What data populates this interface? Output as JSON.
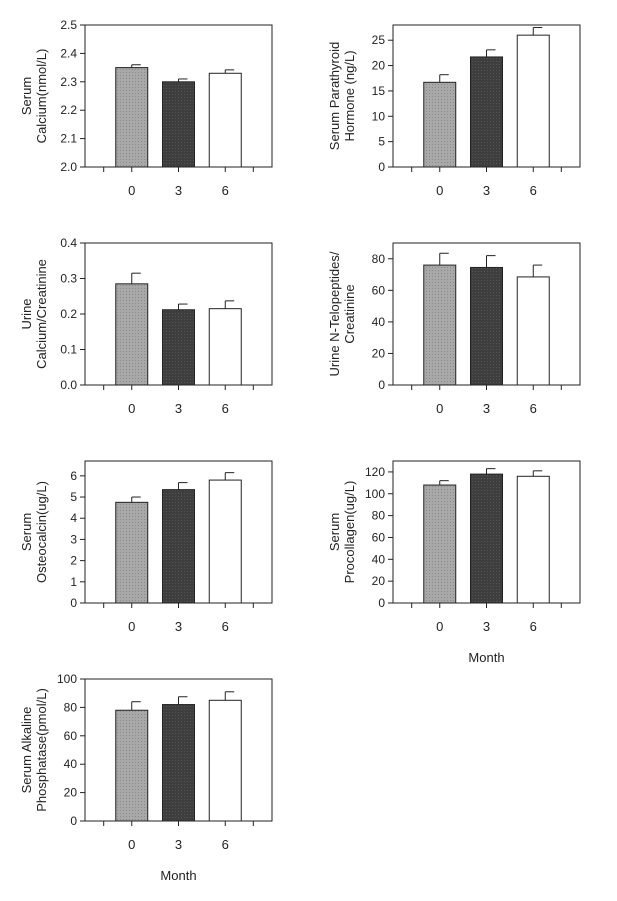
{
  "colors": {
    "month_0": "#9c9c9c",
    "month_3": "#3c3c3c",
    "month_6": "#ffffff",
    "axis": "#222222"
  },
  "chart_data": [
    {
      "id": "serum-calcium",
      "type": "bar",
      "ylabel": [
        "Serum",
        "Calcium(nmol/L)"
      ],
      "xlabel": "",
      "categories": [
        "0",
        "3",
        "6"
      ],
      "values": [
        2.35,
        2.3,
        2.33
      ],
      "errors": [
        0.01,
        0.01,
        0.012
      ],
      "ylim": [
        2.0,
        2.5
      ],
      "yticks": [
        2.0,
        2.1,
        2.2,
        2.3,
        2.4,
        2.5
      ],
      "ytick_labels": [
        "2.0",
        "2.1",
        "2.2",
        "2.3",
        "2.4",
        "2.5"
      ]
    },
    {
      "id": "serum-pth",
      "type": "bar",
      "ylabel": [
        "Serum Parathyroid",
        "Hormone (ng/L)"
      ],
      "xlabel": "",
      "categories": [
        "0",
        "3",
        "6"
      ],
      "values": [
        16.7,
        21.7,
        26.0
      ],
      "errors": [
        1.5,
        1.4,
        1.5
      ],
      "ylim": [
        0,
        28
      ],
      "yticks": [
        0,
        5,
        10,
        15,
        20,
        25
      ],
      "ytick_labels": [
        "0",
        "5",
        "10",
        "15",
        "20",
        "25"
      ]
    },
    {
      "id": "urine-calcium",
      "type": "bar",
      "ylabel": [
        "Urine",
        "Calcium/Creatinine"
      ],
      "xlabel": "",
      "categories": [
        "0",
        "3",
        "6"
      ],
      "values": [
        0.285,
        0.212,
        0.215
      ],
      "errors": [
        0.03,
        0.016,
        0.022
      ],
      "ylim": [
        0.0,
        0.4
      ],
      "yticks": [
        0.0,
        0.1,
        0.2,
        0.3,
        0.4
      ],
      "ytick_labels": [
        "0.0",
        "0.1",
        "0.2",
        "0.3",
        "0.4"
      ]
    },
    {
      "id": "urine-ntx",
      "type": "bar",
      "ylabel": [
        "Urine N-Telopeptides/",
        "Creatinine"
      ],
      "xlabel": "",
      "categories": [
        "0",
        "3",
        "6"
      ],
      "values": [
        76,
        74.5,
        68.5
      ],
      "errors": [
        7.5,
        7.5,
        7.5
      ],
      "ylim": [
        0,
        90
      ],
      "yticks": [
        0,
        20,
        40,
        60,
        80
      ],
      "ytick_labels": [
        "0",
        "20",
        "40",
        "60",
        "80"
      ]
    },
    {
      "id": "serum-osteocalcin",
      "type": "bar",
      "ylabel": [
        "Serum",
        "Osteocalcin(ug/L)"
      ],
      "xlabel": "",
      "categories": [
        "0",
        "3",
        "6"
      ],
      "values": [
        4.75,
        5.35,
        5.8
      ],
      "errors": [
        0.25,
        0.33,
        0.35
      ],
      "ylim": [
        0,
        6.7
      ],
      "yticks": [
        0,
        1,
        2,
        3,
        4,
        5,
        6
      ],
      "ytick_labels": [
        "0",
        "1",
        "2",
        "3",
        "4",
        "5",
        "6"
      ]
    },
    {
      "id": "serum-procollagen",
      "type": "bar",
      "ylabel": [
        "Serum",
        "Procollagen(ug/L)"
      ],
      "xlabel": "Month",
      "categories": [
        "0",
        "3",
        "6"
      ],
      "values": [
        108,
        118,
        116
      ],
      "errors": [
        4,
        5,
        5
      ],
      "ylim": [
        0,
        130
      ],
      "yticks": [
        0,
        20,
        40,
        60,
        80,
        100,
        120
      ],
      "ytick_labels": [
        "0",
        "20",
        "40",
        "60",
        "80",
        "100",
        "120"
      ]
    },
    {
      "id": "serum-alk-phos",
      "type": "bar",
      "ylabel": [
        "Serum Alkaline",
        "Phosphatase(pmol/L)"
      ],
      "xlabel": "Month",
      "categories": [
        "0",
        "3",
        "6"
      ],
      "values": [
        78,
        82,
        85
      ],
      "errors": [
        6,
        5.5,
        6
      ],
      "ylim": [
        0,
        100
      ],
      "yticks": [
        0,
        20,
        40,
        60,
        80,
        100
      ],
      "ytick_labels": [
        "0",
        "20",
        "40",
        "60",
        "80",
        "100"
      ]
    }
  ]
}
